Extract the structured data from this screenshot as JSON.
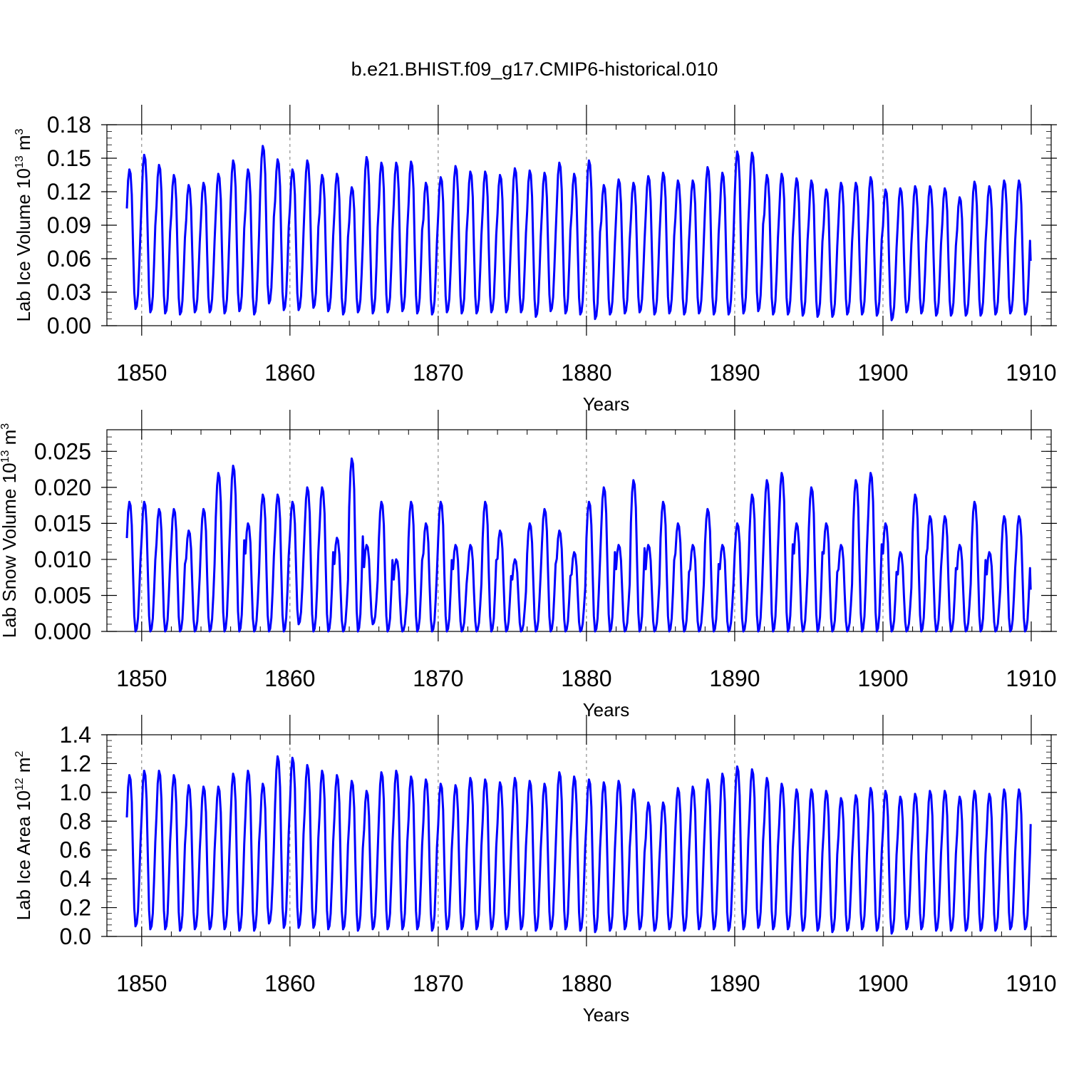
{
  "title": "b.e21.BHIST.f09_g17.CMIP6-historical.010",
  "colors": {
    "series": "#0000ff",
    "axis": "#000000",
    "gridline": "#777777"
  },
  "chart_data": [
    {
      "type": "line",
      "title": "b.e21.BHIST.f09_g17.CMIP6-historical.010",
      "xlabel": "Years",
      "ylabel_base": "Lab Ice Volume 10",
      "ylabel_exp": "13",
      "ylabel_unit": " m",
      "ylabel_unit_exp": "3",
      "xlim": [
        1849,
        1910
      ],
      "ylim": [
        0,
        0.18
      ],
      "xticks": [
        1850,
        1860,
        1870,
        1880,
        1890,
        1900,
        1910
      ],
      "xtick_labels": [
        "1850",
        "1860",
        "1870",
        "1880",
        "1890",
        "1900",
        "1910"
      ],
      "yticks": [
        0,
        0.03,
        0.06,
        0.09,
        0.12,
        0.15,
        0.18
      ],
      "ytick_labels": [
        "0.00",
        "0.03",
        "0.06",
        "0.09",
        "0.12",
        "0.15",
        "0.18"
      ],
      "vgrid_years": [
        1850,
        1860,
        1870,
        1880,
        1890,
        1900
      ],
      "x_start": 1849.0,
      "minima": [
        0.015,
        0.012,
        0.011,
        0.01,
        0.012,
        0.012,
        0.011,
        0.013,
        0.01,
        0.02,
        0.014,
        0.014,
        0.016,
        0.013,
        0.01,
        0.012,
        0.011,
        0.012,
        0.013,
        0.011,
        0.01,
        0.012,
        0.011,
        0.011,
        0.012,
        0.012,
        0.012,
        0.008,
        0.013,
        0.011,
        0.01,
        0.006,
        0.01,
        0.011,
        0.012,
        0.01,
        0.011,
        0.01,
        0.011,
        0.01,
        0.01,
        0.011,
        0.013,
        0.01,
        0.01,
        0.009,
        0.008,
        0.008,
        0.01,
        0.01,
        0.009,
        0.005,
        0.012,
        0.011,
        0.009,
        0.009,
        0.009,
        0.009,
        0.01,
        0.011,
        0.01
      ],
      "maxima": [
        0.14,
        0.153,
        0.144,
        0.135,
        0.126,
        0.128,
        0.136,
        0.148,
        0.14,
        0.161,
        0.149,
        0.14,
        0.148,
        0.135,
        0.136,
        0.124,
        0.151,
        0.146,
        0.146,
        0.147,
        0.128,
        0.133,
        0.143,
        0.138,
        0.138,
        0.135,
        0.141,
        0.139,
        0.137,
        0.146,
        0.136,
        0.148,
        0.126,
        0.131,
        0.128,
        0.134,
        0.137,
        0.13,
        0.13,
        0.142,
        0.137,
        0.156,
        0.155,
        0.135,
        0.136,
        0.132,
        0.13,
        0.122,
        0.128,
        0.128,
        0.133,
        0.122,
        0.123,
        0.125,
        0.125,
        0.123,
        0.115,
        0.129,
        0.125,
        0.13,
        0.13
      ],
      "end_value": 0.058
    },
    {
      "type": "line",
      "xlabel": "Years",
      "ylabel_base": "Lab Snow Volume 10",
      "ylabel_exp": "13",
      "ylabel_unit": " m",
      "ylabel_unit_exp": "3",
      "xlim": [
        1849,
        1910
      ],
      "ylim": [
        0,
        0.028
      ],
      "xticks": [
        1850,
        1860,
        1870,
        1880,
        1890,
        1900,
        1910
      ],
      "xtick_labels": [
        "1850",
        "1860",
        "1870",
        "1880",
        "1890",
        "1900",
        "1910"
      ],
      "yticks": [
        0,
        0.005,
        0.01,
        0.015,
        0.02,
        0.025
      ],
      "ytick_labels": [
        "0.000",
        "0.005",
        "0.010",
        "0.015",
        "0.020",
        "0.025"
      ],
      "vgrid_years": [
        1850,
        1860,
        1870,
        1880,
        1890,
        1900
      ],
      "x_start": 1849.0,
      "minima": [
        0.0,
        0.0,
        0.0,
        0.0,
        0.0,
        0.0,
        0.0,
        0.0,
        0.0,
        0.0,
        0.0,
        0.001,
        0.0,
        0.0,
        0.0,
        0.0,
        0.001,
        0.0,
        0.0,
        0.0,
        0.0,
        0.0,
        0.0,
        0.0,
        0.0,
        0.0,
        0.0,
        0.0,
        0.0,
        0.0,
        0.0,
        0.0,
        0.0,
        0.0,
        0.0,
        0.0,
        0.0,
        0.0,
        0.0,
        0.0,
        0.0,
        0.0,
        0.0,
        0.0,
        0.0,
        0.0,
        0.0,
        0.0,
        0.0,
        0.0,
        0.0,
        0.0,
        0.0,
        0.0,
        0.0,
        0.0,
        0.0,
        0.0,
        0.0,
        0.0,
        0.0
      ],
      "maxima": [
        0.018,
        0.018,
        0.017,
        0.017,
        0.014,
        0.017,
        0.022,
        0.023,
        0.015,
        0.019,
        0.019,
        0.018,
        0.02,
        0.02,
        0.013,
        0.024,
        0.012,
        0.018,
        0.01,
        0.018,
        0.015,
        0.018,
        0.012,
        0.012,
        0.018,
        0.014,
        0.01,
        0.015,
        0.017,
        0.014,
        0.011,
        0.018,
        0.02,
        0.012,
        0.021,
        0.012,
        0.018,
        0.015,
        0.012,
        0.017,
        0.012,
        0.015,
        0.019,
        0.021,
        0.022,
        0.015,
        0.02,
        0.015,
        0.012,
        0.021,
        0.022,
        0.015,
        0.011,
        0.019,
        0.016,
        0.016,
        0.012,
        0.018,
        0.011,
        0.016,
        0.016
      ],
      "end_value": 0.0058
    },
    {
      "type": "line",
      "xlabel": "Years",
      "ylabel_base": "Lab Ice Area 10",
      "ylabel_exp": "12",
      "ylabel_unit": " m",
      "ylabel_unit_exp": "2",
      "xlim": [
        1849,
        1910
      ],
      "ylim": [
        0,
        1.4
      ],
      "xticks": [
        1850,
        1860,
        1870,
        1880,
        1890,
        1900,
        1910
      ],
      "xtick_labels": [
        "1850",
        "1860",
        "1870",
        "1880",
        "1890",
        "1900",
        "1910"
      ],
      "yticks": [
        0,
        0.2,
        0.4,
        0.6,
        0.8,
        1.0,
        1.2,
        1.4
      ],
      "ytick_labels": [
        "0.0",
        "0.2",
        "0.4",
        "0.6",
        "0.8",
        "1.0",
        "1.2",
        "1.4"
      ],
      "vgrid_years": [
        1850,
        1860,
        1870,
        1880,
        1890,
        1900
      ],
      "x_start": 1849.0,
      "minima": [
        0.07,
        0.05,
        0.05,
        0.04,
        0.05,
        0.05,
        0.05,
        0.04,
        0.04,
        0.09,
        0.06,
        0.06,
        0.06,
        0.05,
        0.05,
        0.04,
        0.05,
        0.05,
        0.05,
        0.05,
        0.04,
        0.05,
        0.05,
        0.05,
        0.05,
        0.05,
        0.05,
        0.04,
        0.05,
        0.05,
        0.04,
        0.03,
        0.04,
        0.05,
        0.05,
        0.04,
        0.05,
        0.04,
        0.05,
        0.05,
        0.04,
        0.05,
        0.06,
        0.05,
        0.05,
        0.04,
        0.04,
        0.03,
        0.04,
        0.05,
        0.04,
        0.02,
        0.05,
        0.05,
        0.04,
        0.04,
        0.04,
        0.04,
        0.04,
        0.05,
        0.05
      ],
      "maxima": [
        1.12,
        1.15,
        1.15,
        1.12,
        1.05,
        1.04,
        1.04,
        1.13,
        1.15,
        1.06,
        1.25,
        1.24,
        1.19,
        1.15,
        1.12,
        1.08,
        1.01,
        1.14,
        1.15,
        1.11,
        1.09,
        1.06,
        1.05,
        1.1,
        1.09,
        1.07,
        1.1,
        1.08,
        1.06,
        1.14,
        1.11,
        1.09,
        1.07,
        1.08,
        1.02,
        0.93,
        0.93,
        1.03,
        1.04,
        1.09,
        1.13,
        1.18,
        1.16,
        1.1,
        1.06,
        1.02,
        1.02,
        1.01,
        0.96,
        0.98,
        1.03,
        1.01,
        0.97,
        0.99,
        1.01,
        1.01,
        0.97,
        1.01,
        0.99,
        1.02,
        1.02
      ],
      "end_value": 0.78
    }
  ]
}
